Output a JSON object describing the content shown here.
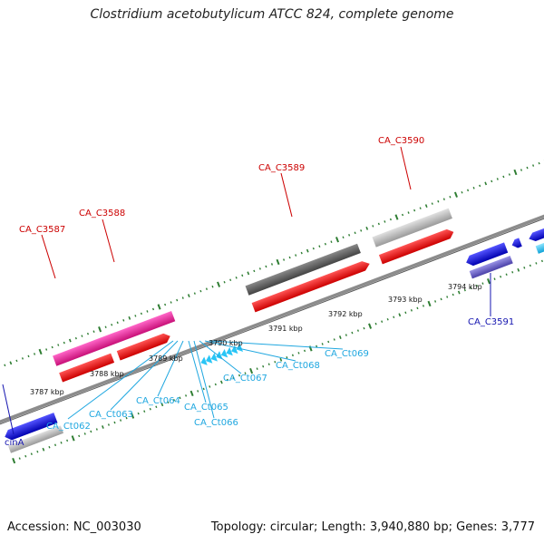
{
  "header": {
    "title": "Clostridium acetobutylicum ATCC 824, complete genome"
  },
  "footer": {
    "accession": "Accession: NC_003030",
    "topology": "Topology: circular; Length: 3,940,880 bp; Genes: 3,777"
  },
  "scale": {
    "kbp_labels": [
      "3787 kbp",
      "3788 kbp",
      "3789 kbp",
      "3790 kbp",
      "3791 kbp",
      "3792 kbp",
      "3793 kbp",
      "3794 kbp"
    ]
  },
  "colors": {
    "backbone": "#8c8c8c",
    "tick": "#2e7d32",
    "cds_forward": "#ff1a1a",
    "cds_reverse": "#1a1aff",
    "gene_magenta": "#ee2b9b",
    "gene_gray": "#666666",
    "gene_lightgray": "#bdbdbd",
    "gene_cyan": "#29c5f6",
    "gene_purple": "#6f66c8",
    "label_top": "#cc0000",
    "label_bottom": "#1515b0",
    "label_trna": "#1fa7e0"
  },
  "genes": {
    "top": [
      "CA_C3587",
      "CA_C3588",
      "CA_C3589",
      "CA_C3590"
    ],
    "bottom": [
      "CA_C3591",
      "cinA"
    ],
    "trna": [
      "CA_Ct062",
      "CA_Ct063",
      "CA_Ct064",
      "CA_Ct065",
      "CA_Ct066",
      "CA_Ct067",
      "CA_Ct068",
      "CA_Ct069"
    ]
  }
}
